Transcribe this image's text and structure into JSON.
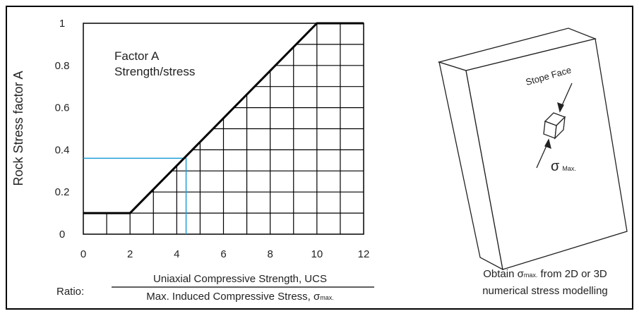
{
  "chart_data": {
    "type": "line",
    "annotation_lines": [
      "Factor A",
      "Strength/stress"
    ],
    "ylabel": "Rock Stress factor A",
    "xlabel_prefix": "Ratio:",
    "xlabel_numerator": "Uniaxial Compressive Strength, UCS",
    "xlabel_denominator": {
      "text": "Max. Induced Compressive Stress, σ",
      "subscript": "max."
    },
    "x": [
      0,
      2,
      10,
      12
    ],
    "series": [
      {
        "name": "Factor A",
        "color": "#000000",
        "values": [
          0.1,
          0.1,
          1,
          1
        ]
      }
    ],
    "reading": {
      "x": 4.4,
      "y": 0.36,
      "color": "#1e9fd8"
    },
    "xlim": [
      0,
      12
    ],
    "ylim": [
      0,
      1
    ],
    "xticks": [
      0,
      2,
      4,
      6,
      8,
      10,
      12
    ],
    "yticks": [
      0,
      0.2,
      0.4,
      0.6,
      0.8,
      1
    ],
    "grid_x": [
      1,
      2,
      3,
      4,
      5,
      6,
      7,
      8,
      9,
      10,
      11
    ],
    "grid_y": [
      0.1,
      0.2,
      0.3,
      0.4,
      0.5,
      0.6,
      0.7,
      0.8,
      0.9
    ],
    "grid": true
  },
  "diagram": {
    "face_label": "Stope Face",
    "stress_symbol": "σ",
    "stress_subscript": "Max.",
    "caption": [
      {
        "text": "Obtain σ",
        "subscript": "max.",
        "rest": " from 2D or 3D"
      },
      "numerical stress modelling"
    ]
  }
}
